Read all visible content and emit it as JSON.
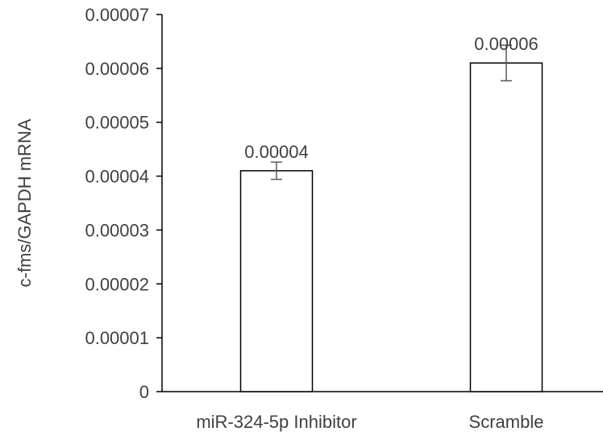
{
  "chart_data": {
    "type": "bar",
    "title": "",
    "xlabel": "",
    "ylabel": "c-fms/GAPDH mRNA",
    "categories": [
      "miR-324-5p Inhibitor",
      "Scramble"
    ],
    "values": [
      4.1e-05,
      6.1e-05
    ],
    "error": [
      1.6e-06,
      3.3e-06
    ],
    "data_labels": [
      "0.00004",
      "0.00006"
    ],
    "ylim": [
      0,
      7e-05
    ],
    "yticks": [
      0,
      1e-05,
      2e-05,
      3e-05,
      4e-05,
      5e-05,
      6e-05,
      7e-05
    ],
    "ytick_labels": [
      "0",
      "0.00001",
      "0.00002",
      "0.00003",
      "0.00004",
      "0.00005",
      "0.00006",
      "0.00007"
    ],
    "grid": false,
    "legend": "none",
    "colors": {
      "bar_fill": "#ffffff",
      "bar_stroke": "#000000",
      "axis": "#000000",
      "error_bar": "#595959",
      "text": "#404040"
    }
  }
}
